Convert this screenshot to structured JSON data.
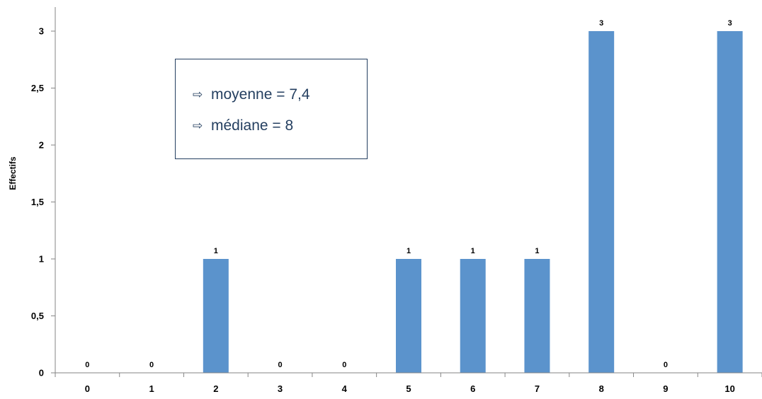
{
  "chart_data": {
    "type": "bar",
    "categories": [
      "0",
      "1",
      "2",
      "3",
      "4",
      "5",
      "6",
      "7",
      "8",
      "9",
      "10"
    ],
    "values": [
      0,
      0,
      1,
      0,
      0,
      1,
      1,
      1,
      3,
      0,
      3
    ],
    "data_labels": [
      "0",
      "0",
      "1",
      "0",
      "0",
      "1",
      "1",
      "1",
      "3",
      "0",
      "3"
    ],
    "ylabel": "Effectifs",
    "xlabel": "",
    "ylim": [
      0,
      3
    ],
    "y_ticks": [
      {
        "value": 0,
        "label": "0"
      },
      {
        "value": 0.5,
        "label": "0,5"
      },
      {
        "value": 1,
        "label": "1"
      },
      {
        "value": 1.5,
        "label": "1,5"
      },
      {
        "value": 2,
        "label": "2"
      },
      {
        "value": 2.5,
        "label": "2,5"
      },
      {
        "value": 3,
        "label": "3"
      }
    ],
    "bar_color": "#5b93cc",
    "grid": false,
    "annotations": [
      {
        "text": "moyenne = 7,4"
      },
      {
        "text": "médiane = 8"
      }
    ]
  },
  "stats_box": {
    "mean_label": "moyenne = 7,4",
    "median_label": "médiane = 8",
    "arrow_icon": "right-arrow-icon",
    "arrow_glyph": "⇨",
    "text_color": "#243f60"
  }
}
